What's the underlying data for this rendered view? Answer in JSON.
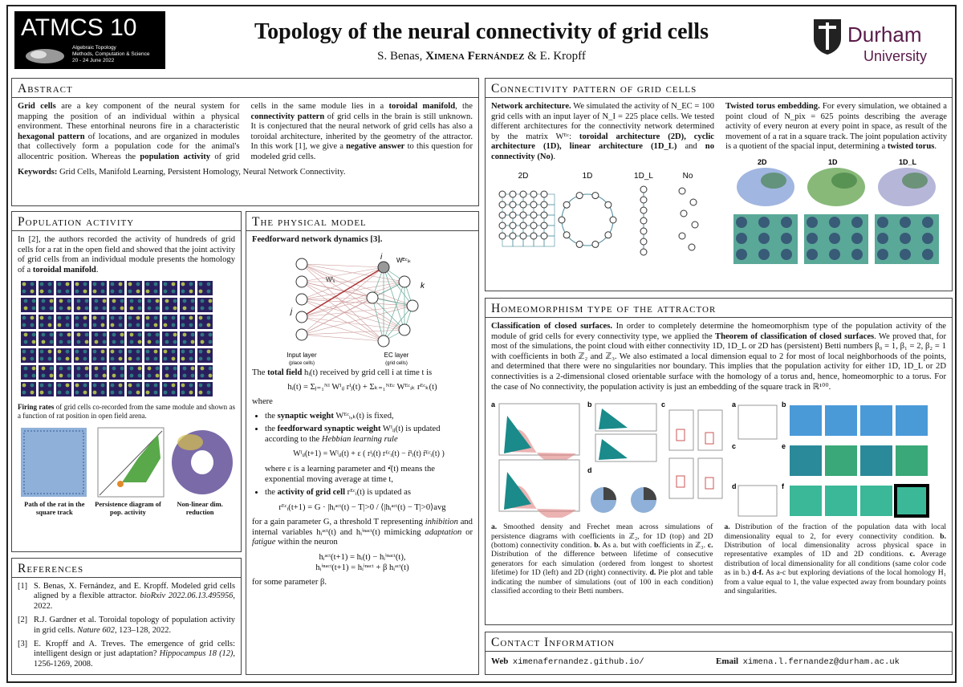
{
  "header": {
    "logo_title": "ATMCS 10",
    "logo_sub": [
      "Algebraic Topology",
      "Methods, Computation & Science",
      "20 - 24 June 2022"
    ],
    "title": "Topology of the neural connectivity of grid cells",
    "authors": [
      "S. Benas, ",
      "Ximena Fernández",
      " & E. Kropff"
    ],
    "university": [
      "Durham",
      "University"
    ]
  },
  "abstract": {
    "heading": "Abstract",
    "text": [
      "Grid cells",
      " are a key component of the neural system for mapping the position of an individual within a physical environment. These entorhinal neurons fire in a characteristic ",
      "hexagonal pattern",
      " of locations, and are organized in modules that collectively form a population code for the animal's allocentric position. Whereas the ",
      "population activity",
      " of grid cells in the same module lies in a ",
      "toroidal manifold",
      ", the ",
      "connectivity pattern",
      " of grid cells in the brain is still unknown. It is conjectured that the neural network of grid cells has also a toroidal architecture, inherited by the geometry of the attractor. In this work [1], we give a ",
      "negative answer",
      " to this question for modeled grid cells."
    ],
    "keywords": [
      "Keywords:",
      " Grid Cells, Manifold Learning, Persistent Homology, Neural Network Connectivity."
    ]
  },
  "population": {
    "heading": "Population activity",
    "text": [
      "In [2], the authors recorded the activity of hundreds of grid cells for a rat in the open field and showed that the joint activity of grid cells from an individual module presents the homology of a ",
      "toroidal manifold",
      "."
    ],
    "caption": [
      "Firing rates",
      " of grid cells co-recorded from the same module and shown as a function of rat position in open field arena."
    ],
    "panels": [
      "Path of the rat in the square track",
      "Persistence diagram of pop. activity",
      "Non-linear dim. reduction"
    ]
  },
  "model": {
    "heading": "The physical model",
    "subheading": "Feedforward network dynamics [3].",
    "diagram": {
      "input": "Input layer",
      "input_sub": "(place cells)",
      "ec": "EC layer",
      "ec_sub": "(grid cells)",
      "i": "i",
      "j": "j",
      "k": "k",
      "w_i": "Wᴵᵢⱼ",
      "w_ec": "Wᴱᶜᵢₖ"
    },
    "field": [
      "The ",
      "total field",
      " hᵢ(t) received by grid cell i at time t is"
    ],
    "eq1": "hᵢ(t) = Σⱼ₌₁ᴺᴵ Wᴵᵢⱼ rᴵⱼ(t) + Σₖ₌₁ᴺᴱᶜ Wᴱᶜᵢₖ rᴱᶜₖ(t)",
    "where": "where",
    "b1": [
      "the ",
      "synaptic weight",
      " Wᴱᶜᵢ,ₖ(t) is fixed,"
    ],
    "b2": [
      "the ",
      "feedforward synaptic weight",
      " Wᴵᵢⱼ(t) is updated according to the ",
      "Hebbian learning rule"
    ],
    "eq2": "Wᴵᵢⱼ(t+1) = Wᴵᵢⱼ(t) + ε ( rᴵⱼ(t) rᴱᶜᵢ(t) − r̄ᴵⱼ(t) r̄ᴱᶜᵢ(t) )",
    "b2b": "where ε is a learning parameter and •̄(t) means the exponential moving average at time t,",
    "b3": [
      "the ",
      "activity of grid cell",
      " rᴱᶜᵢ(t) is updated as"
    ],
    "eq3": "rᴱᶜᵢ(t+1) = G · |hᵢᵃᶜᵗ(t) − T|>0 / ⟨|hᵢᵃᶜᵗ(t) − T|>0⟩avg",
    "params": [
      "for a gain parameter G, a threshold T representing ",
      "inhibition",
      " and internal variables hᵢᵃᶜᵗ(t) and hᵢⁱⁿᵃᶜᵗ(t) mimicking ",
      "adaptation",
      " or ",
      "fatigue",
      " within the neuron"
    ],
    "eq4": "hᵢᵃᶜᵗ(t+1) = hᵢ(t) − hᵢⁱⁿᵃᶜᵗ(t),",
    "eq5": "hᵢⁱⁿᵃᶜᵗ(t+1) = hᵢⁱⁿᵃᶜᵗ + β hᵢᵃᶜᵗ(t)",
    "last": "for some parameter β."
  },
  "references": {
    "heading": "References",
    "items": [
      [
        "[1]",
        "S. Benas, X. Fernández, and E. Kropff. Modeled grid cells aligned by a flexible attractor. ",
        "bioRxiv 2022.06.13.495956",
        ", 2022."
      ],
      [
        "[2]",
        "R.J. Gardner et al. Toroidal topology of population activity in grid cells. ",
        "Nature 602",
        ", 123–128, 2022."
      ],
      [
        "[3]",
        "E. Kropff and A. Treves. The emergence of grid cells: intelligent design or just adaptation? ",
        "Hippocampus 18 (12)",
        ", 1256-1269, 2008."
      ]
    ]
  },
  "connectivity": {
    "heading": "Connectivity pattern of grid cells",
    "left": [
      "Network architecture.",
      " We simulated the activity of N_EC = 100 grid cells with an input layer of N_I = 225 place cells. We tested different architectures for the connectivity network determined by the matrix Wᴱᶜ: ",
      "toroidal architecture (2D), cyclic architecture (1D), linear architecture (1D_L)",
      " and ",
      "no connectivity (No)",
      "."
    ],
    "right": [
      "Twisted torus embedding.",
      " For every simulation, we obtained a point cloud of N_pix = 625 points describing the average activity of every neuron at every point in space, as result of the movement of a rat in a square track. The joint population activity is a quotient of the spacial input, determining a ",
      "twisted torus",
      "."
    ],
    "arch_labels": [
      "2D",
      "1D",
      "1D_L",
      "No"
    ],
    "embed_labels": [
      "2D",
      "1D",
      "1D_L"
    ]
  },
  "homeo": {
    "heading": "Homeomorphism type of the attractor",
    "text": [
      "Classification of closed surfaces.",
      " In order to completely determine the homeomorphism type of the population activity of the module of grid cells for every connectivity type, we applied the ",
      "Theorem of classification of closed surfaces",
      ". We proved that, for most of the simulations, the point cloud with either connectivity 1D, 1D_L or 2D has (persistent) Betti numbers β₀ = 1, β₁ = 2, β₂ = 1 with coefficients in both ℤ₂ and ℤ₃. We also estimated a local dimension equal to 2 for most of local neighborhoods of the points, and determined that there were no singularities nor boundary. This implies that the population activity for either 1D, 1D_L or 2D connectivities is a 2-dimensional closed orientable surface with the homology of a torus and, hence, homeomorphic to a torus. For the case of No connectivity, the population activity is just an embedding of the square track in ℝ¹⁰⁰."
    ],
    "panel_letters": [
      "a",
      "b",
      "c",
      "d",
      "a",
      "b",
      "c",
      "d",
      "e",
      "f"
    ],
    "cap_left": [
      "a.",
      " Smoothed density and Frechet mean across simulations of persistence diagrams with coefficients in ℤ₂, for 1D (top) and 2D (bottom) connectivity condition. ",
      "b.",
      " As a. but with coefficients in ℤ₃. ",
      "c.",
      " Distribution of the difference between lifetime of consecutive generators for each simulation (ordered from longest to shortest lifetime) for 1D (left) and 2D (right) connectivity. ",
      "d.",
      " Pie plot and table indicating the number of simulations (out of 100 in each condition) classified according to their Betti numbers."
    ],
    "cap_right": [
      "a.",
      " Distribution of the fraction of the population data with local dimensionality equal to 2, for every connectivity condition. ",
      "b.",
      " Distribution of local dimensionality across physical space in representative examples of 1D and 2D conditions. ",
      "c.",
      " Average distribution of local dimensionality for all conditions (same color code as in b.) ",
      "d-f.",
      " As a-c but exploring deviations of the local homology H₁ from a value equal to 1, the value expected away from boundary points and singularities."
    ]
  },
  "contact": {
    "heading": "Contact Information",
    "web_label": "Web",
    "web": "ximenafernandez.github.io/",
    "email_label": "Email",
    "email": "ximena.l.fernandez@durham.ac.uk"
  }
}
